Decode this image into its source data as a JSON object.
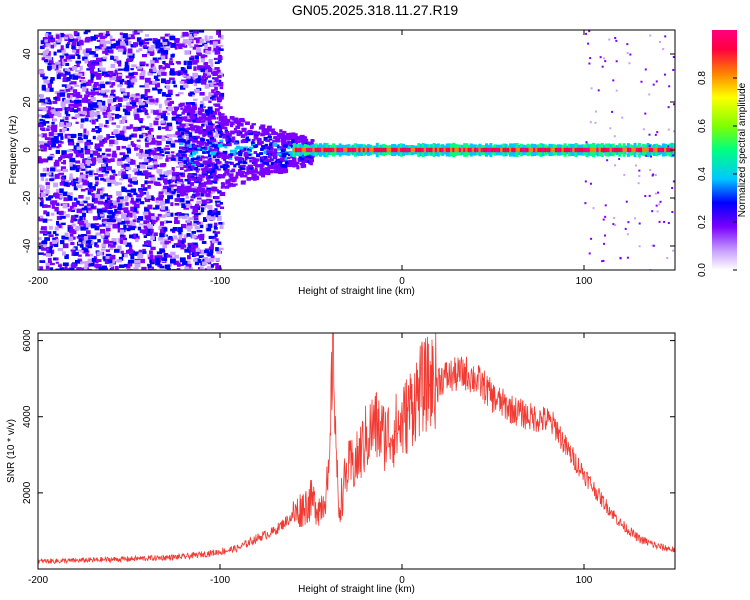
{
  "title": "GN05.2025.318.11.27.R19",
  "colors": {
    "snr_line": "#f03a32",
    "background": "#ffffff",
    "axis": "#000000"
  },
  "chart_data": [
    {
      "type": "heatmap",
      "name": "spectrogram",
      "xlabel": "Height of straight line (km)",
      "ylabel": "Frequency (Hz)",
      "xlim": [
        -200,
        150
      ],
      "ylim": [
        -50,
        50
      ],
      "xticks": [
        -200,
        -100,
        0,
        100
      ],
      "yticks": [
        -40,
        -20,
        0,
        20,
        40
      ],
      "colorbar": {
        "label": "Normalized spectral amplitude",
        "range": [
          0,
          1
        ],
        "ticks": [
          0.0,
          0.2,
          0.4,
          0.6,
          0.8
        ],
        "tick_labels": [
          "0.0",
          "0.2",
          "0.4",
          "0.6",
          "0.8"
        ],
        "colormap": [
          "#ffffff",
          "#c8a0ff",
          "#7a00ff",
          "#0000ff",
          "#00c8ff",
          "#00ff80",
          "#80ff00",
          "#ffff00",
          "#ff8000",
          "#ff0040",
          "#ff0080"
        ]
      },
      "description_bands": [
        {
          "x": [
            -200,
            -110
          ],
          "freq_spread": 50,
          "amplitude": 0.2
        },
        {
          "x": [
            -110,
            -60
          ],
          "freq_spread": 10,
          "amplitude": 0.35
        },
        {
          "x": [
            -60,
            150
          ],
          "freq_spread": 2,
          "amplitude": 0.95
        }
      ]
    },
    {
      "type": "line",
      "name": "snr",
      "xlabel": "Height of straight line (km)",
      "ylabel": "SNR (10 * v/v)",
      "xlim": [
        -200,
        150
      ],
      "ylim": [
        0,
        6200
      ],
      "xticks": [
        -200,
        -100,
        0,
        100
      ],
      "yticks": [
        2000,
        4000,
        6000
      ],
      "envelope": {
        "x": [
          -200,
          -180,
          -160,
          -140,
          -120,
          -100,
          -90,
          -80,
          -70,
          -60,
          -50,
          -45,
          -40,
          -38,
          -35,
          -30,
          -25,
          -20,
          -15,
          -10,
          -5,
          0,
          5,
          10,
          15,
          20,
          25,
          30,
          35,
          40,
          45,
          50,
          60,
          70,
          80,
          85,
          90,
          100,
          110,
          120,
          130,
          140,
          150
        ],
        "y": [
          200,
          220,
          250,
          280,
          320,
          450,
          550,
          800,
          1000,
          1400,
          1800,
          1600,
          2300,
          6100,
          1500,
          2600,
          2800,
          3400,
          3800,
          3500,
          3600,
          3800,
          4300,
          4700,
          4900,
          5000,
          5050,
          5100,
          5150,
          5000,
          4800,
          4500,
          4200,
          4000,
          3900,
          3700,
          3200,
          2500,
          1800,
          1200,
          800,
          600,
          500
        ]
      }
    }
  ]
}
